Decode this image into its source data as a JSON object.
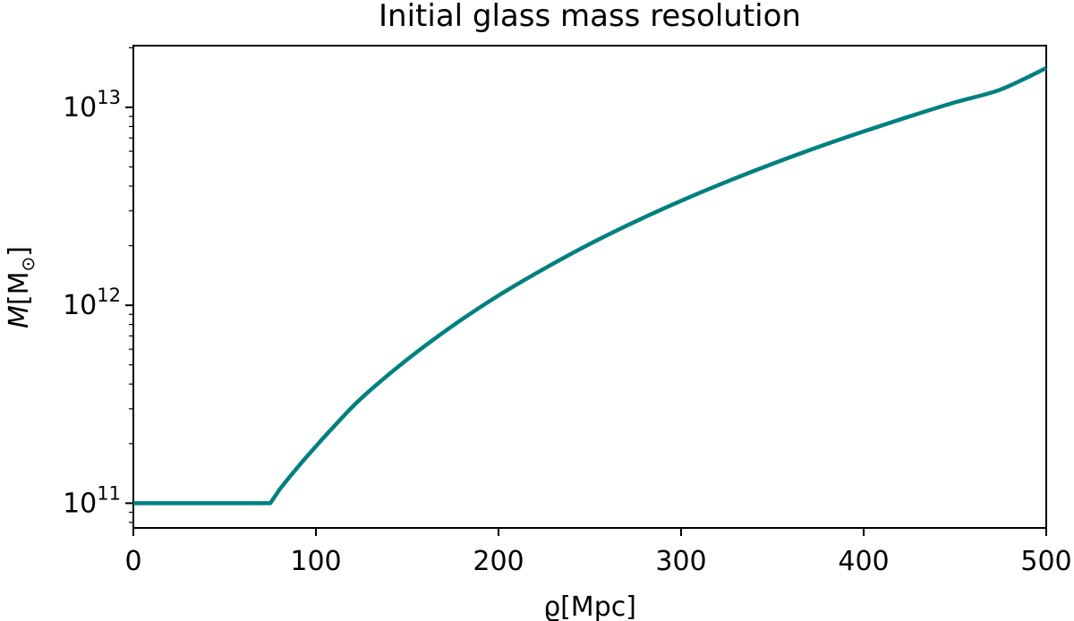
{
  "chart_data": {
    "type": "line",
    "title": "Initial glass mass resolution",
    "xlabel": "ϱ[Mpc]",
    "ylabel": "M[M⊙]",
    "ylabel_parts": {
      "var": "M",
      "open": "[M",
      "sub": "⊙",
      "close": "]"
    },
    "xlim": [
      0,
      500
    ],
    "ylim": [
      75000000000.0,
      20500000000000.0
    ],
    "yscale": "log",
    "grid": false,
    "legend": "none",
    "xticks": [
      {
        "value": 0,
        "label": "0"
      },
      {
        "value": 100,
        "label": "100"
      },
      {
        "value": 200,
        "label": "200"
      },
      {
        "value": 300,
        "label": "300"
      },
      {
        "value": 400,
        "label": "400"
      },
      {
        "value": 500,
        "label": "500"
      }
    ],
    "yticks": [
      {
        "value": 100000000000.0,
        "base": "10",
        "exp": "11"
      },
      {
        "value": 1000000000000.0,
        "base": "10",
        "exp": "12"
      },
      {
        "value": 10000000000000.0,
        "base": "10",
        "exp": "13"
      }
    ],
    "series": [
      {
        "color": "#008080",
        "x": [
          0,
          25,
          50,
          75,
          80,
          90,
          100,
          110,
          125,
          150,
          175,
          200,
          225,
          250,
          275,
          300,
          325,
          350,
          375,
          400,
          425,
          450,
          475,
          500
        ],
        "y": [
          100000000000.0,
          100000000000.0,
          100000000000.0,
          100000000000.0,
          117000000000.0,
          152000000000.0,
          194000000000.0,
          245000000000.0,
          340000000000.0,
          532000000000.0,
          789000000000.0,
          1120000000000.0,
          1530000000000.0,
          2040000000000.0,
          2650000000000.0,
          3370000000000.0,
          4210000000000.0,
          5180000000000.0,
          6300000000000.0,
          7560000000000.0,
          8990000000000.0,
          10600000000000.0,
          12300000000000.0,
          15800000000000.0
        ]
      }
    ]
  }
}
